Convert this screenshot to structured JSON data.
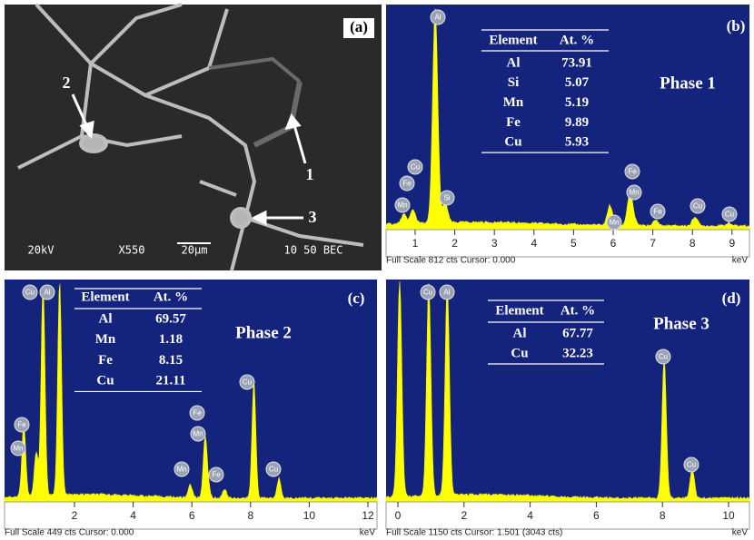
{
  "sem": {
    "label": "(a)",
    "markers": [
      "2",
      "1",
      "3"
    ],
    "info": [
      "20kV",
      "X550",
      "20μm",
      "10 50 BEC"
    ]
  },
  "spectra": [
    {
      "label": "(b)",
      "phase": "Phase 1",
      "table": {
        "header": [
          "Element",
          "At. %"
        ],
        "rows": [
          [
            "Al",
            "73.91"
          ],
          [
            "Si",
            "5.07"
          ],
          [
            "Mn",
            "5.19"
          ],
          [
            "Fe",
            "9.89"
          ],
          [
            "Cu",
            "5.93"
          ]
        ]
      },
      "peak_labels": [
        "Cu",
        "Fe",
        "Mn",
        "Al",
        "Si",
        "Mn",
        "Fe",
        "Mn",
        "Fe",
        "Cu",
        "Cu"
      ],
      "xticks": [
        "1",
        "2",
        "3",
        "4",
        "5",
        "6",
        "7",
        "8",
        "9"
      ],
      "unit": "keV",
      "footer": "Full Scale 812 cts Cursor: 0.000"
    },
    {
      "label": "(c)",
      "phase": "Phase 2",
      "table": {
        "header": [
          "Element",
          "At. %"
        ],
        "rows": [
          [
            "Al",
            "69.57"
          ],
          [
            "Mn",
            "1.18"
          ],
          [
            "Fe",
            "8.15"
          ],
          [
            "Cu",
            "21.11"
          ]
        ]
      },
      "peak_labels": [
        "Cu",
        "Al",
        "Fe",
        "Mn",
        "Mn",
        "Fe",
        "Mn",
        "Fe",
        "Cu",
        "Cu"
      ],
      "xticks": [
        "2",
        "4",
        "6",
        "8",
        "10",
        "12"
      ],
      "unit": "keV",
      "footer": "Full Scale 449 cts Cursor: 0.000"
    },
    {
      "label": "(d)",
      "phase": "Phase 3",
      "table": {
        "header": [
          "Element",
          "At. %"
        ],
        "rows": [
          [
            "Al",
            "67.77"
          ],
          [
            "Cu",
            "32.23"
          ]
        ]
      },
      "peak_labels": [
        "Cu",
        "Al",
        "Cu",
        "Cu"
      ],
      "xticks": [
        "0",
        "2",
        "4",
        "6",
        "8",
        "10"
      ],
      "unit": "keV",
      "footer": "Full Scale 1150 cts Cursor: 1.501  (3043 cts)"
    }
  ]
}
